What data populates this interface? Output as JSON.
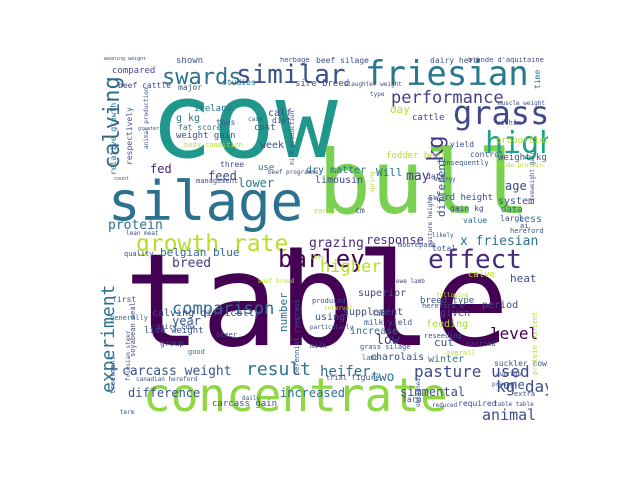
{
  "colors": {
    "deep_purple": "#440154",
    "purple": "#472c7a",
    "indigo": "#3b518b",
    "blue": "#2c718e",
    "teal": "#21908d",
    "green_teal": "#27ad81",
    "green": "#5cc863",
    "lime": "#aadc32",
    "yellow": "#fde725"
  },
  "words": {
    "table": "table",
    "cow": "cow",
    "bull": "bull",
    "silage": "silage",
    "concentrate": "concentrate",
    "friesian": "friesian",
    "grass": "grass",
    "growth_rate": "growth rate",
    "effect": "effect",
    "barley": "barley",
    "similar": "similar",
    "swards": "swards",
    "calving": "calving",
    "high": "high",
    "performance": "performance",
    "kg": "kg",
    "experiment": "experiment",
    "higher": "higher",
    "comparison": "comparison",
    "carcass_weight": "carcass weight",
    "result": "result",
    "pasture_used": "pasture used",
    "heifer": "heifer",
    "level": "level",
    "animal": "animal",
    "kg_day": "kg day",
    "protein": "protein",
    "breed": "breed",
    "grazing": "grazing",
    "response": "response",
    "x_friesian": "x friesian",
    "lower": "lower",
    "feed": "feed",
    "age": "age",
    "difference": "difference",
    "increased": "increased",
    "simmental": "simmental",
    "belgian_blue": "belgian blue",
    "low": "low",
    "two": "two",
    "one": "one",
    "may": "may",
    "will": "Will",
    "year": "year",
    "number": "number",
    "different": "different",
    "fed": "fed",
    "day": "day",
    "weight_gain": "weight gain",
    "g_kg": "g kg",
    "calving_difficulty": "calving difficulty",
    "live_weight": "live weight",
    "supplement": "supplement",
    "feeding": "feeding",
    "cut": "cut",
    "winter": "winter",
    "charolais": "charolais",
    "sward_height": "sward height",
    "system": "system",
    "data": "data",
    "less": "less",
    "period": "period",
    "given": "given",
    "using": "using",
    "increase": "increase",
    "superior": "superior",
    "breed_type": "breed type",
    "heat": "heat",
    "calve": "calve",
    "milk_yield": "milk yield",
    "dry_matter": "dry matter",
    "limousin": "limousin",
    "week": "week",
    "cost": "cost",
    "use": "use",
    "shown": "shown",
    "compared": "compared",
    "ireland": "ireland",
    "fat_score": "fat score",
    "thus": "thus",
    "calf": "calf",
    "diet": "diet",
    "respectively": "respectively",
    "relative_growth": "relative growth",
    "beef_cattle": "beef cattle",
    "major": "major",
    "studies": "studies",
    "sire_breed": "sire breed",
    "beef_silage": "beef silage",
    "slaughter_weight": "slaughter weight",
    "herbage": "herbage",
    "dairy_herd": "dairy herd",
    "blonde_daquitaine": "blonde d'aquitaine",
    "weight_kg": "weight kg",
    "proportion": "proportion",
    "control": "control",
    "fodder_beet": "fodder beet",
    "cattle": "cattle",
    "yield": "yield",
    "consequently": "consequently",
    "muscle_weight": "muscle weight",
    "time": "time",
    "within": "within",
    "total": "total",
    "value": "value",
    "large": "large",
    "hereford": "hereford",
    "ai": "ai",
    "suckler_cow": "suckler cow",
    "dairy_cow": "dairy cow",
    "soyabean_meal": "soyabean meal",
    "group": "group",
    "good": "good",
    "treatment": "treatment",
    "friesian_steer": "friesian steer",
    "canadian_hereford": "canadian hereford",
    "carcass_gain": "carcass gain",
    "steer": "steer",
    "three": "three",
    "management": "management",
    "first": "first",
    "quality": "quality",
    "lean_meat": "lean meat",
    "generally": "generally",
    "perennial_ryegrass": "perennial ryegrass",
    "milk": "milk",
    "grass_silage": "grass silage",
    "lamb": "lamb",
    "farm": "farm",
    "trial": "trial",
    "figure": "figure",
    "required": "required",
    "extra": "extra",
    "table_table": "table table",
    "reseeding": "reseeding",
    "carried": "carried",
    "overall": "overall",
    "following": "following",
    "moorepark": "moorepark",
    "ewe_lamb": "ewe lamb",
    "body_condition": "body condition",
    "animal_production": "animal production",
    "milk_production": "milk production",
    "early": "early",
    "late": "late",
    "particularly": "particularly",
    "produced": "produced",
    "daily": "daily",
    "term": "term",
    "likely": "likely",
    "energy": "energy",
    "crude_protein": "crude protein",
    "liveweight_gain": "liveweight gain",
    "pasture_height": "pasture height",
    "protein_content": "protein content",
    "count": "count",
    "present": "present",
    "average": "average",
    "weaning_weight": "weaning weight",
    "greater": "greater",
    "reduced": "reduced",
    "obtained": "obtained",
    "case": "case",
    "beef_programme": "beef programme",
    "type": "type",
    "interval": "interval",
    "beef_breed": "beef breed",
    "spring": "spring",
    "cm": "cm",
    "gain_kg": "gain kg",
    "lab": "lab",
    "hereford_x": "hereford x",
    "date": "date"
  }
}
